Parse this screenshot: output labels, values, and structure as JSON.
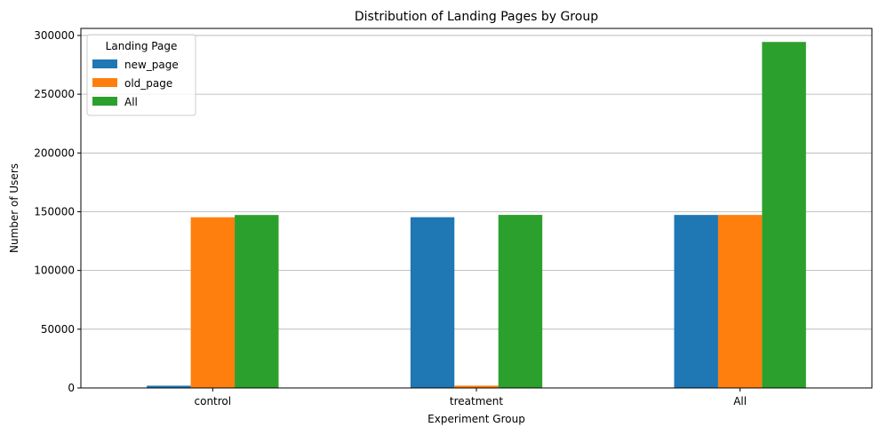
{
  "chart_data": {
    "type": "bar",
    "title": "Distribution of Landing Pages by Group",
    "xlabel": "Experiment Group",
    "ylabel": "Number of Users",
    "categories": [
      "control",
      "treatment",
      "All"
    ],
    "series": [
      {
        "name": "new_page",
        "color": "#1f77b4",
        "values": [
          1928,
          145311,
          147239
        ]
      },
      {
        "name": "old_page",
        "color": "#ff7f0e",
        "values": [
          145274,
          1965,
          147239
        ]
      },
      {
        "name": "All",
        "color": "#2ca02c",
        "values": [
          147202,
          147276,
          294478
        ]
      }
    ],
    "ylim": [
      0,
      306000
    ],
    "yticks": [
      0,
      50000,
      100000,
      150000,
      200000,
      250000,
      300000
    ],
    "grid": "y",
    "legend": {
      "title": "Landing Page",
      "placement": "top-left"
    }
  }
}
